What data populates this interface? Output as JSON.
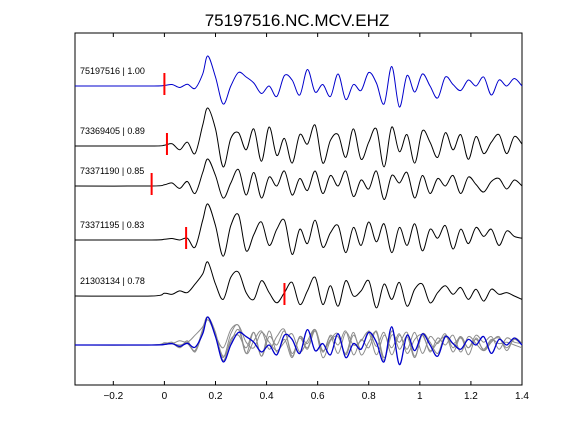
{
  "chart_data": {
    "type": "line",
    "title": "75197516.NC.MCV.EHZ",
    "xlabel": "",
    "ylabel": "",
    "xlim": [
      -0.35,
      1.4
    ],
    "x_ticks": [
      -0.2,
      0,
      0.2,
      0.4,
      0.6,
      0.8,
      1,
      1.2,
      1.4
    ],
    "x_tick_labels": [
      "−0.2",
      "0",
      "0.2",
      "0.4",
      "0.6",
      "0.8",
      "1",
      "1.2",
      "1.4"
    ],
    "grid": false,
    "legend": "none",
    "colors": {
      "reference": "#0000cc",
      "trace": "#000000",
      "marker": "#ff0000",
      "overlay": "#8c8c8c"
    },
    "traces": [
      {
        "label": "75197516 | 1.00",
        "pick_time": 0.0,
        "stroke": "#0000cc",
        "ref_index": 0,
        "t": [
          -0.35,
          -0.05,
          0.0,
          0.03,
          0.06,
          0.09,
          0.12,
          0.15,
          0.17,
          0.2,
          0.23,
          0.26,
          0.29,
          0.32,
          0.35,
          0.38,
          0.41,
          0.44,
          0.47,
          0.5,
          0.53,
          0.56,
          0.59,
          0.62,
          0.65,
          0.68,
          0.71,
          0.74,
          0.77,
          0.8,
          0.83,
          0.86,
          0.89,
          0.92,
          0.95,
          0.98,
          1.01,
          1.04,
          1.07,
          1.1,
          1.13,
          1.16,
          1.19,
          1.22,
          1.25,
          1.28,
          1.31,
          1.34,
          1.37,
          1.4
        ],
        "amp": [
          0.0,
          0.0,
          0.02,
          0.05,
          -0.05,
          0.06,
          -0.08,
          0.4,
          1.0,
          0.3,
          -0.6,
          0.0,
          0.45,
          0.3,
          0.1,
          -0.25,
          0.0,
          -0.35,
          0.35,
          0.2,
          -0.3,
          0.55,
          -0.2,
          0.05,
          -0.35,
          0.4,
          -0.45,
          0.05,
          -0.15,
          0.45,
          0.1,
          -0.6,
          0.65,
          -0.7,
          0.35,
          -0.2,
          0.4,
          0.0,
          -0.4,
          0.3,
          0.05,
          -0.15,
          0.2,
          0.0,
          0.3,
          -0.3,
          0.2,
          0.0,
          0.25,
          0.0
        ]
      },
      {
        "label": "73369405 | 0.89",
        "pick_time": 0.01,
        "stroke": "#000000",
        "t": [
          -0.35,
          -0.05,
          0.0,
          0.03,
          0.06,
          0.09,
          0.12,
          0.15,
          0.17,
          0.2,
          0.23,
          0.26,
          0.29,
          0.32,
          0.35,
          0.38,
          0.41,
          0.44,
          0.47,
          0.5,
          0.53,
          0.56,
          0.59,
          0.62,
          0.65,
          0.68,
          0.71,
          0.74,
          0.77,
          0.8,
          0.83,
          0.86,
          0.89,
          0.92,
          0.95,
          0.98,
          1.01,
          1.04,
          1.07,
          1.1,
          1.13,
          1.16,
          1.19,
          1.22,
          1.25,
          1.28,
          1.31,
          1.34,
          1.37,
          1.4
        ],
        "amp": [
          0.0,
          0.0,
          0.02,
          0.06,
          -0.1,
          0.1,
          -0.2,
          0.55,
          1.0,
          0.45,
          -0.55,
          0.2,
          0.35,
          -0.1,
          0.45,
          -0.4,
          0.5,
          -0.25,
          0.2,
          -0.45,
          0.3,
          0.05,
          0.55,
          -0.45,
          0.15,
          0.3,
          -0.3,
          0.45,
          -0.35,
          0.1,
          0.45,
          -0.55,
          0.5,
          -0.15,
          0.3,
          -0.45,
          0.4,
          0.1,
          -0.3,
          0.35,
          -0.1,
          0.3,
          -0.35,
          0.25,
          -0.2,
          0.1,
          0.3,
          -0.2,
          0.25,
          0.05
        ]
      },
      {
        "label": "73371190 | 0.85",
        "pick_time": -0.05,
        "stroke": "#000000",
        "t": [
          -0.35,
          -0.05,
          0.0,
          0.03,
          0.06,
          0.09,
          0.12,
          0.15,
          0.17,
          0.2,
          0.23,
          0.26,
          0.29,
          0.32,
          0.35,
          0.38,
          0.41,
          0.44,
          0.47,
          0.5,
          0.53,
          0.56,
          0.59,
          0.62,
          0.65,
          0.68,
          0.71,
          0.74,
          0.77,
          0.8,
          0.83,
          0.86,
          0.89,
          0.92,
          0.95,
          0.98,
          1.01,
          1.04,
          1.07,
          1.1,
          1.13,
          1.16,
          1.19,
          1.22,
          1.25,
          1.28,
          1.31,
          1.34,
          1.37,
          1.4
        ],
        "amp": [
          0.0,
          0.0,
          0.04,
          0.1,
          -0.08,
          0.15,
          -0.25,
          0.45,
          0.9,
          0.35,
          -0.4,
          0.1,
          0.55,
          -0.3,
          0.45,
          -0.4,
          0.3,
          0.0,
          0.5,
          -0.3,
          0.25,
          -0.15,
          0.5,
          -0.25,
          0.35,
          0.0,
          0.5,
          -0.35,
          0.2,
          -0.1,
          0.5,
          -0.45,
          0.35,
          0.1,
          0.45,
          -0.4,
          0.35,
          -0.25,
          0.25,
          0.0,
          0.35,
          -0.25,
          0.3,
          0.05,
          -0.2,
          0.15,
          0.25,
          -0.1,
          0.2,
          0.0
        ]
      },
      {
        "label": "73371195 | 0.83",
        "pick_time": 0.085,
        "stroke": "#000000",
        "t": [
          -0.35,
          -0.05,
          0.0,
          0.03,
          0.06,
          0.09,
          0.12,
          0.15,
          0.17,
          0.2,
          0.23,
          0.26,
          0.29,
          0.32,
          0.35,
          0.38,
          0.41,
          0.44,
          0.47,
          0.5,
          0.53,
          0.56,
          0.59,
          0.62,
          0.65,
          0.68,
          0.71,
          0.74,
          0.77,
          0.8,
          0.83,
          0.86,
          0.89,
          0.92,
          0.95,
          0.98,
          1.01,
          1.04,
          1.07,
          1.1,
          1.13,
          1.16,
          1.19,
          1.22,
          1.25,
          1.28,
          1.31,
          1.34,
          1.37,
          1.4
        ],
        "amp": [
          0.0,
          0.0,
          0.02,
          0.04,
          0.0,
          0.05,
          -0.2,
          0.55,
          1.0,
          0.4,
          -0.45,
          0.4,
          0.7,
          -0.3,
          0.15,
          0.5,
          -0.15,
          0.3,
          0.55,
          -0.4,
          0.3,
          -0.1,
          0.55,
          -0.2,
          0.2,
          0.4,
          -0.35,
          0.35,
          -0.15,
          0.5,
          -0.05,
          0.45,
          -0.35,
          0.35,
          -0.15,
          0.45,
          -0.3,
          0.3,
          0.05,
          0.4,
          -0.25,
          0.3,
          -0.1,
          0.35,
          0.1,
          0.3,
          -0.15,
          0.25,
          0.1,
          0.05
        ]
      },
      {
        "label": "21303134 | 0.78",
        "pick_time": 0.47,
        "stroke": "#000000",
        "t": [
          -0.35,
          -0.05,
          0.0,
          0.03,
          0.06,
          0.09,
          0.12,
          0.15,
          0.17,
          0.2,
          0.23,
          0.26,
          0.29,
          0.32,
          0.35,
          0.38,
          0.41,
          0.44,
          0.47,
          0.5,
          0.53,
          0.56,
          0.59,
          0.62,
          0.65,
          0.68,
          0.71,
          0.74,
          0.77,
          0.8,
          0.83,
          0.86,
          0.89,
          0.92,
          0.95,
          0.98,
          1.01,
          1.04,
          1.07,
          1.1,
          1.13,
          1.16,
          1.19,
          1.22,
          1.25,
          1.28,
          1.31,
          1.34,
          1.37,
          1.4
        ],
        "amp": [
          0.0,
          0.0,
          0.08,
          0.05,
          0.15,
          0.1,
          0.35,
          0.65,
          1.0,
          0.35,
          -0.1,
          0.55,
          0.7,
          0.1,
          -0.1,
          0.45,
          0.1,
          -0.2,
          0.1,
          0.4,
          -0.25,
          0.15,
          0.55,
          -0.25,
          0.3,
          -0.3,
          0.45,
          0.0,
          0.15,
          0.45,
          -0.35,
          0.35,
          -0.1,
          0.4,
          -0.3,
          0.2,
          0.35,
          -0.2,
          0.1,
          0.3,
          0.05,
          0.25,
          -0.1,
          0.2,
          -0.15,
          0.2,
          0.05,
          0.1,
          0.0,
          -0.1
        ]
      }
    ]
  }
}
